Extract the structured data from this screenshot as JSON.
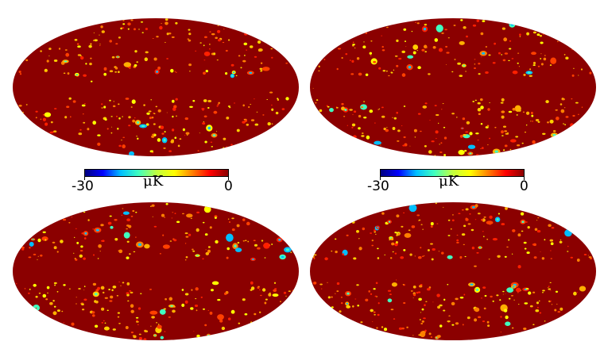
{
  "figure": {
    "maps": [
      {
        "id": "top-left",
        "seed": 11
      },
      {
        "id": "top-right",
        "seed": 23
      },
      {
        "id": "bottom-left",
        "seed": 37
      },
      {
        "id": "bottom-right",
        "seed": 53
      }
    ],
    "colorbars": [
      {
        "min_label": "-30",
        "max_label": "0",
        "unit": "μK"
      },
      {
        "min_label": "-30",
        "max_label": "0",
        "unit": "μK"
      }
    ],
    "colormap": {
      "background": "#8b0000",
      "stops": [
        "#00007f",
        "#0000ff",
        "#00bfff",
        "#40ffbf",
        "#bfff40",
        "#ffff00",
        "#ff8000",
        "#ff0000",
        "#8b0000"
      ]
    }
  }
}
